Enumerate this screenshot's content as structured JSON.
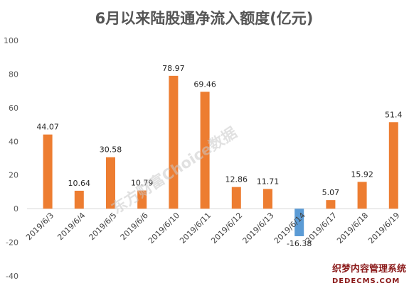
{
  "chart_data": {
    "type": "bar",
    "title": "6月以来陆股通净流入额度(亿元)",
    "categories": [
      "2019/6/3",
      "2019/6/4",
      "2019/6/5",
      "2019/6/6",
      "2019/6/10",
      "2019/6/11",
      "2019/6/12",
      "2019/6/13",
      "2019/6/14",
      "2019/6/17",
      "2019/6/18",
      "2019/6/19"
    ],
    "values": [
      44.07,
      10.64,
      30.58,
      10.79,
      78.97,
      69.46,
      12.86,
      11.71,
      -16.38,
      5.07,
      15.92,
      51.4
    ],
    "data_labels": [
      "44.07",
      "10.64",
      "30.58",
      "10.79",
      "78.97",
      "69.46",
      "12.86",
      "11.71",
      "-16.38",
      "5.07",
      "15.92",
      "51.4"
    ],
    "ylim": [
      -40,
      100
    ],
    "yticks": [
      "100",
      "80",
      "60",
      "40",
      "20",
      "0",
      "-20",
      "-40"
    ],
    "ytick_values": [
      100,
      80,
      60,
      40,
      20,
      0,
      -20,
      -40
    ],
    "xlabel": "",
    "ylabel": "",
    "colors": {
      "positive": "#ED7D31",
      "negative": "#5B9BD5"
    },
    "grid": false,
    "legend": "none"
  },
  "watermark": "东方财富Choice数据",
  "corner_logo": {
    "line1": "织梦内容管理系统",
    "line2": "DEDECMS.COM"
  }
}
